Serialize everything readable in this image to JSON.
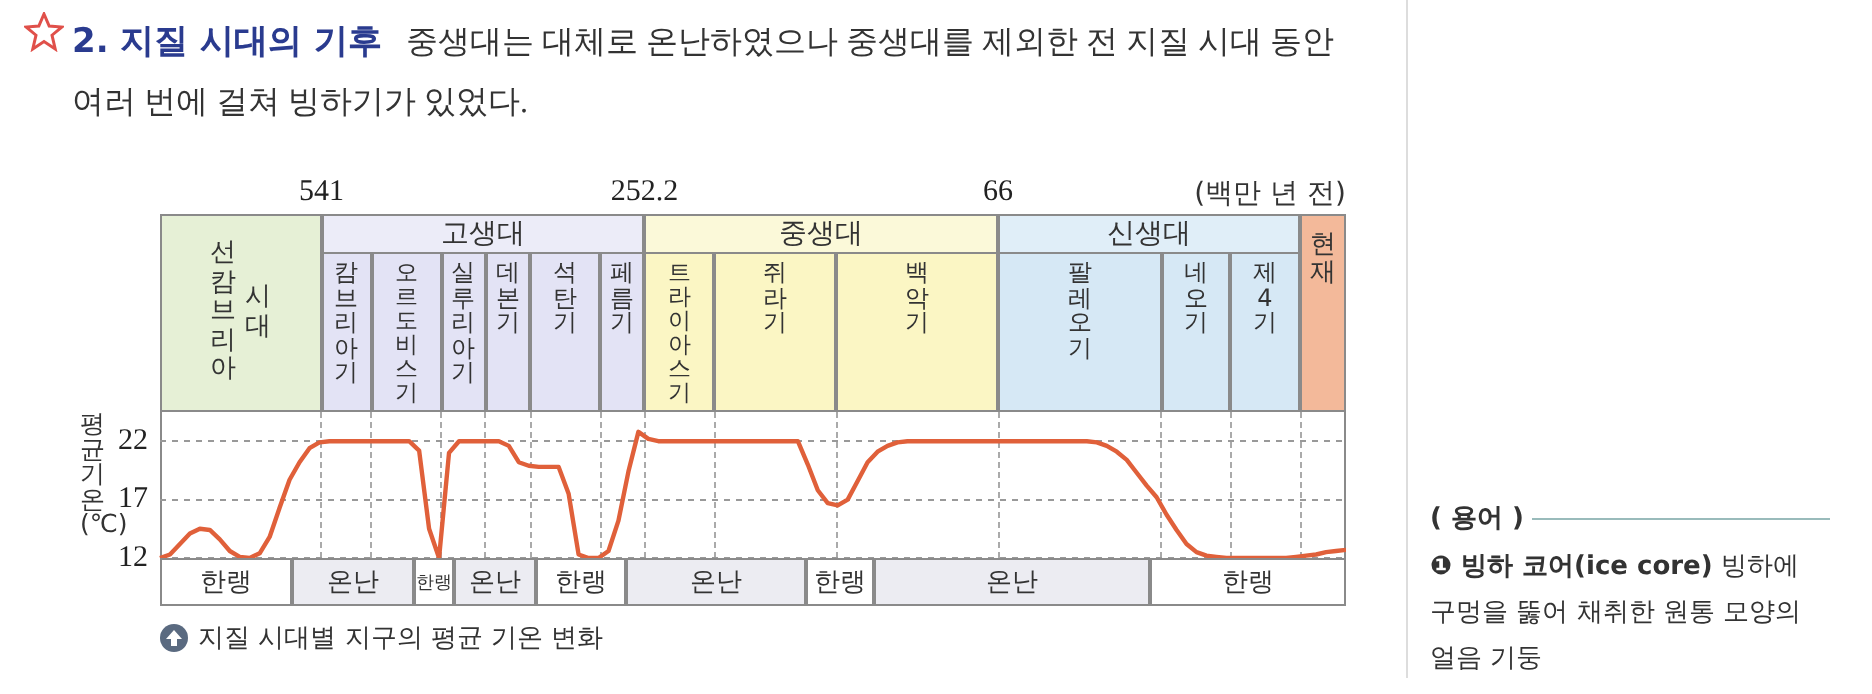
{
  "chart_data": {
    "type": "line",
    "title": "2. 지질 시대의 기후",
    "subtitle": "중생대는 대체로 온난하였으나 중생대를 제외한 전 지질 시대 동안 여러 번에 걸쳐 빙하기가 있었다.",
    "ylabel": "평균 기온(℃)",
    "annotations": [
      "541",
      "252.2",
      "66",
      "(백만 년 전)",
      "고생대",
      "중생대",
      "신생대",
      "선캄브리아 시대",
      "캄브리아기",
      "오르도비스기",
      "실루리아기",
      "데본기",
      "석탄기",
      "페름기",
      "트라이아스기",
      "쥐라기",
      "백악기",
      "팔레오기",
      "네오기",
      "제4기",
      "현재",
      "한랭",
      "온난",
      "한랭",
      "온난",
      "한랭",
      "온난",
      "한랭",
      "온난",
      "한랭",
      "지질 시대별 지구의 평균 기온 변화",
      "( 용어 )",
      "❶ 빙하 코어(ice core)",
      "빙하에 구멍을 뚫어 채취한 원통 모양의 얼음 기둥"
    ],
    "categories": [
      null,
      null,
      null,
      null,
      null,
      null,
      null,
      null,
      null,
      null,
      null,
      null,
      null,
      null,
      null,
      null,
      null,
      null,
      null,
      null,
      null,
      null,
      null,
      null,
      null,
      null,
      null,
      null,
      null,
      null,
      null,
      null,
      null,
      null,
      null,
      null,
      null,
      null,
      null,
      null,
      null,
      null,
      null,
      null,
      null,
      null,
      null,
      null,
      null,
      null,
      null,
      null,
      null,
      null,
      null,
      null,
      null,
      null,
      null,
      null,
      null,
      null,
      null,
      null,
      null,
      null,
      null,
      null,
      null,
      null,
      null,
      null,
      null,
      null,
      null,
      null,
      null,
      null,
      null,
      null,
      null,
      null,
      null,
      null,
      null,
      null,
      null,
      null,
      null,
      null,
      null,
      null,
      null,
      null,
      null,
      null,
      null,
      null,
      null,
      null,
      null,
      null,
      null,
      null,
      null,
      null,
      null,
      null,
      null,
      null,
      null,
      null,
      null,
      null,
      null,
      null,
      null,
      null,
      null,
      null
    ],
    "series": [
      {
        "color": "#e0603a",
        "values": [
          12,
          12.3,
          13.2,
          14.1,
          14.5,
          14.4,
          13.6,
          12.6,
          12.1,
          12,
          12.4,
          13.8,
          16.3,
          18.7,
          20.2,
          21.4,
          21.9,
          22,
          22,
          22,
          22,
          22,
          22,
          22,
          22,
          22,
          21.2,
          14.5,
          12,
          21,
          22,
          22,
          22,
          22,
          22,
          21.6,
          20.2,
          19.9,
          19.8,
          19.8,
          19.8,
          17.5,
          12.3,
          12,
          12,
          12.6,
          15.2,
          19.4,
          22.8,
          22.2,
          22,
          22,
          22,
          22,
          22,
          22,
          22,
          22,
          22,
          22,
          22,
          22,
          22,
          22,
          22,
          20,
          17.8,
          16.7,
          16.5,
          17,
          18.6,
          20.2,
          21.1,
          21.6,
          21.9,
          22,
          22,
          22,
          22,
          22,
          22,
          22,
          22,
          22,
          22,
          22,
          22,
          22,
          22,
          22,
          22,
          22,
          22,
          22,
          21.9,
          21.6,
          21.1,
          20.4,
          19.3,
          18.2,
          17.2,
          15.7,
          14.4,
          13.2,
          12.5,
          12.2,
          12.1,
          12,
          12,
          12,
          12,
          12,
          12,
          12,
          12.1,
          12.2,
          12.3,
          12.5,
          12.6,
          12.7
        ]
      }
    ],
    "ylim": [
      12,
      24.5
    ],
    "yticks": [
      12,
      17,
      22
    ],
    "grid": "y",
    "tick_labels": "y"
  }
}
